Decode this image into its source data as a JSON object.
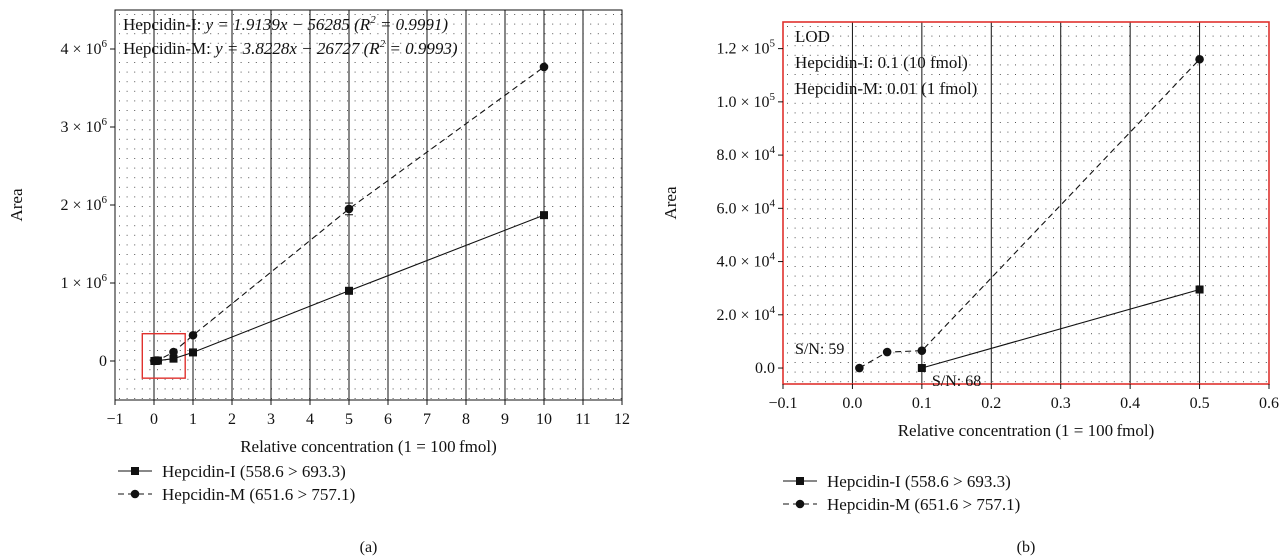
{
  "chart_data": [
    {
      "type": "line",
      "panel_label": "(a)",
      "xlabel": "Relative concentration (1 = 100 fmol)",
      "ylabel": "Area",
      "xlim": [
        -1,
        12
      ],
      "ylim": [
        -500000,
        4500000
      ],
      "xticks": [
        -1,
        0,
        1,
        2,
        3,
        4,
        5,
        6,
        7,
        8,
        9,
        10,
        11,
        12
      ],
      "xtick_labels": [
        "−1",
        "0",
        "1",
        "2",
        "3",
        "4",
        "5",
        "6",
        "7",
        "8",
        "9",
        "10",
        "11",
        "12"
      ],
      "yticks": [
        0,
        1000000,
        2000000,
        3000000,
        4000000
      ],
      "ytick_labels": [
        {
          "text": "0",
          "mantissa": "",
          "exp": ""
        },
        {
          "text": "",
          "mantissa": "1 × 10",
          "exp": "6"
        },
        {
          "text": "",
          "mantissa": "2 × 10",
          "exp": "6"
        },
        {
          "text": "",
          "mantissa": "3 × 10",
          "exp": "6"
        },
        {
          "text": "",
          "mantissa": "4 × 10",
          "exp": "6"
        }
      ],
      "grid": true,
      "legend_position": "bottom-left",
      "annotations": [
        {
          "text": "Hepcidin-I: y = 1.9139x − 56285 (R² = 0.9991)"
        },
        {
          "text": "Hepcidin-M: y = 3.8228x − 26727 (R² = 0.9993)"
        }
      ],
      "equations": [
        {
          "prefix": "Hepcidin-I: ",
          "italic_a": "y = 1.9139x − 56285 (R",
          "sup": "2",
          "italic_b": " = 0.9991)"
        },
        {
          "prefix": "Hepcidin-M: ",
          "italic_a": "y = 3.8228x − 26727 (R",
          "sup": "2",
          "italic_b": " = 0.9993)"
        }
      ],
      "highlight_box": {
        "x": [
          -0.3,
          0.8
        ],
        "y": [
          -220000,
          350000
        ],
        "color": "#e0322e"
      },
      "series": [
        {
          "name": "Hepcidin-I (558.6 > 693.3)",
          "marker": "square",
          "line": "solid",
          "x": [
            0.01,
            0.05,
            0.1,
            0.5,
            1,
            5,
            10
          ],
          "y": [
            0,
            2000,
            5000,
            30000,
            110000,
            900000,
            1870000
          ]
        },
        {
          "name": "Hepcidin-M (651.6 > 757.1)",
          "marker": "circle",
          "line": "dashed",
          "x": [
            0.01,
            0.05,
            0.1,
            0.5,
            1,
            5,
            10
          ],
          "y": [
            0,
            5000,
            6000,
            115000,
            330000,
            1950000,
            3770000
          ],
          "error": [
            0,
            0,
            0,
            0,
            0,
            75000,
            0
          ]
        }
      ]
    },
    {
      "type": "line",
      "panel_label": "(b)",
      "xlabel": "Relative concentration (1 = 100 fmol)",
      "ylabel": "Area",
      "xlim": [
        -0.1,
        0.6
      ],
      "ylim": [
        -6000,
        130000
      ],
      "xticks": [
        -0.1,
        0,
        0.1,
        0.2,
        0.3,
        0.4,
        0.5,
        0.6
      ],
      "xtick_labels": [
        "−0.1",
        "0.0",
        "0.1",
        "0.2",
        "0.3",
        "0.4",
        "0.5",
        "0.6"
      ],
      "yticks": [
        0,
        20000,
        40000,
        60000,
        80000,
        100000,
        120000
      ],
      "ytick_labels": [
        {
          "text": "0.0",
          "mantissa": "",
          "exp": ""
        },
        {
          "text": "",
          "mantissa": "2.0 × 10",
          "exp": "4"
        },
        {
          "text": "",
          "mantissa": "4.0 × 10",
          "exp": "4"
        },
        {
          "text": "",
          "mantissa": "6.0 × 10",
          "exp": "4"
        },
        {
          "text": "",
          "mantissa": "8.0 × 10",
          "exp": "4"
        },
        {
          "text": "",
          "mantissa": "1.0 × 10",
          "exp": "5"
        },
        {
          "text": "",
          "mantissa": "1.2 × 10",
          "exp": "5"
        }
      ],
      "grid": true,
      "legend_position": "bottom-left",
      "frame_color": "#e0322e",
      "annotations": [
        {
          "text": "LOD"
        },
        {
          "text": "Hepcidin-I: 0.1 (10 fmol)"
        },
        {
          "text": "Hepcidin-M: 0.01 (1 fmol)"
        },
        {
          "text": "S/N: 59"
        },
        {
          "text": "S/N: 68"
        }
      ],
      "series": [
        {
          "name": "Hepcidin-I (558.6 > 693.3)",
          "marker": "square",
          "line": "solid",
          "x": [
            0.1,
            0.5
          ],
          "y": [
            0,
            29500
          ]
        },
        {
          "name": "Hepcidin-M (651.6 > 757.1)",
          "marker": "circle",
          "line": "dashed",
          "x": [
            0.01,
            0.05,
            0.1,
            0.5
          ],
          "y": [
            0,
            6000,
            6500,
            116000
          ]
        }
      ]
    }
  ]
}
